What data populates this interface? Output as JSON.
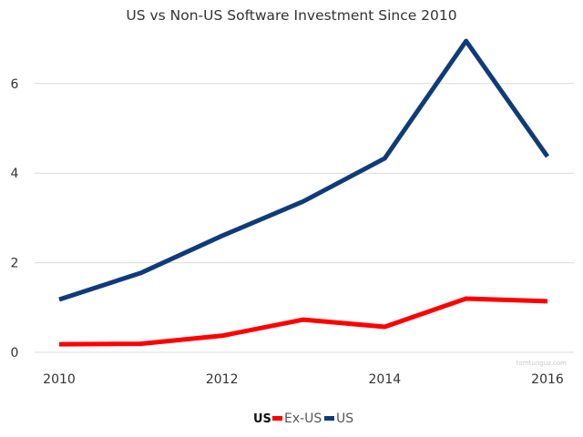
{
  "chart_data": {
    "type": "line",
    "title": "US vs Non-US Software Investment Since 2010",
    "xlabel": "",
    "ylabel": "",
    "x": [
      2010,
      2011,
      2012,
      2013,
      2014,
      2015,
      2016
    ],
    "x_tick_labels": [
      "2010",
      "2012",
      "2014",
      "2016"
    ],
    "x_tick_values": [
      2010,
      2012,
      2014,
      2016
    ],
    "y_tick_labels": [
      "0",
      "2",
      "4",
      "6"
    ],
    "y_tick_values": [
      0,
      2,
      4,
      6
    ],
    "xlim": [
      2010,
      2016
    ],
    "ylim": [
      0,
      7
    ],
    "grid": true,
    "legend": {
      "placement": "bottom",
      "title": "US",
      "entries": [
        "Ex-US",
        "US"
      ]
    },
    "series": [
      {
        "name": "Ex-US",
        "color": "#ff0000",
        "values": [
          0.18,
          0.19,
          0.37,
          0.73,
          0.57,
          1.2,
          1.14
        ]
      },
      {
        "name": "US",
        "color": "#0f3b7b",
        "values": [
          1.18,
          1.77,
          2.6,
          3.37,
          4.33,
          6.95,
          4.37
        ]
      }
    ],
    "annotations": [
      "tomtunguz.com"
    ]
  }
}
